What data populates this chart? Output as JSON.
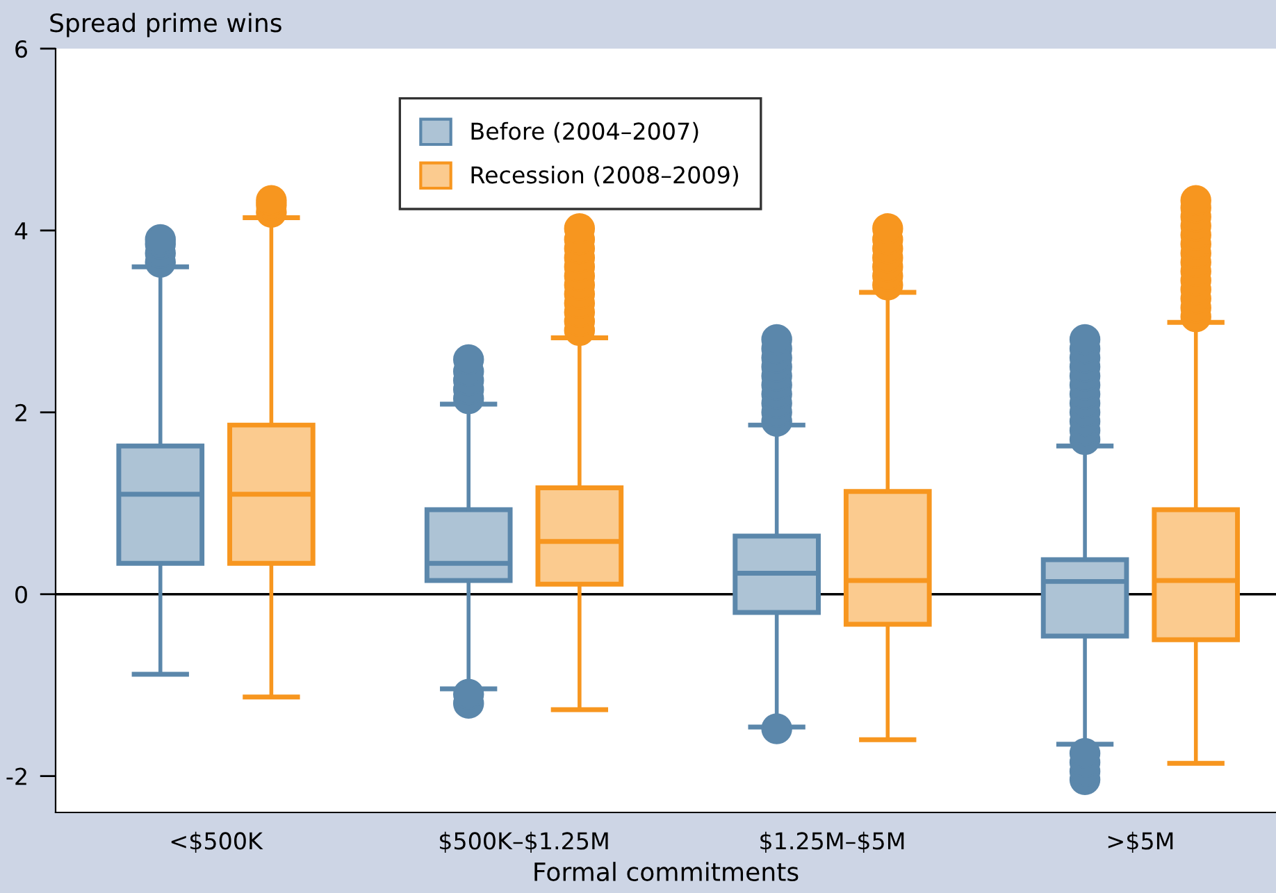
{
  "chart_data": {
    "type": "box",
    "ylabel": "Spread prime wins",
    "xlabel": "Formal commitments",
    "categories": [
      "<$500K",
      "$500K–$1.25M",
      "$1.25M–$5M",
      ">$5M"
    ],
    "ylim": [
      -2.4,
      6
    ],
    "yticks": [
      {
        "value": -2,
        "label": "-2"
      },
      0,
      2,
      4,
      6
    ],
    "legend": "top",
    "ref_lines": [
      {
        "axis": "y",
        "value": 0,
        "color": "#000000"
      }
    ],
    "series": [
      {
        "name": "Before (2004–2007)",
        "color": "#5b87ab",
        "boxes": [
          {
            "low": -0.88,
            "q1": 0.34,
            "median": 1.1,
            "q3": 1.63,
            "high": 3.6,
            "outliers": [
              3.65,
              3.75,
              3.85,
              3.9
            ]
          },
          {
            "low": -1.04,
            "q1": 0.15,
            "median": 0.34,
            "q3": 0.93,
            "high": 2.09,
            "outliers": [
              -1.2,
              -1.1,
              2.15,
              2.25,
              2.35,
              2.45,
              2.58
            ]
          },
          {
            "low": -1.46,
            "q1": -0.2,
            "median": 0.23,
            "q3": 0.64,
            "high": 1.86,
            "outliers": [
              -1.48,
              1.9,
              2.0,
              2.1,
              2.2,
              2.3,
              2.4,
              2.5,
              2.6,
              2.7,
              2.8
            ]
          },
          {
            "low": -1.65,
            "q1": -0.46,
            "median": 0.14,
            "q3": 0.38,
            "high": 1.63,
            "outliers": [
              -2.04,
              -1.95,
              -1.85,
              -1.75,
              1.7,
              1.8,
              1.9,
              2.0,
              2.1,
              2.2,
              2.3,
              2.4,
              2.5,
              2.6,
              2.7,
              2.8
            ]
          }
        ]
      },
      {
        "name": "Recession (2008–2009)",
        "color": "#f7961f",
        "boxes": [
          {
            "low": -1.13,
            "q1": 0.34,
            "median": 1.1,
            "q3": 1.86,
            "high": 4.14,
            "outliers": [
              4.2,
              4.28,
              4.33
            ]
          },
          {
            "low": -1.27,
            "q1": 0.11,
            "median": 0.58,
            "q3": 1.17,
            "high": 2.82,
            "outliers": [
              2.9,
              3.0,
              3.1,
              3.2,
              3.3,
              3.4,
              3.5,
              3.6,
              3.7,
              3.8,
              3.9,
              4.02
            ]
          },
          {
            "low": -1.6,
            "q1": -0.33,
            "median": 0.15,
            "q3": 1.13,
            "high": 3.32,
            "outliers": [
              3.4,
              3.5,
              3.6,
              3.7,
              3.8,
              3.9,
              4.02
            ]
          },
          {
            "low": -1.86,
            "q1": -0.5,
            "median": 0.15,
            "q3": 0.93,
            "high": 2.99,
            "outliers": [
              3.05,
              3.15,
              3.25,
              3.35,
              3.45,
              3.55,
              3.65,
              3.75,
              3.85,
              3.95,
              4.05,
              4.15,
              4.25,
              4.33
            ]
          }
        ]
      }
    ]
  }
}
